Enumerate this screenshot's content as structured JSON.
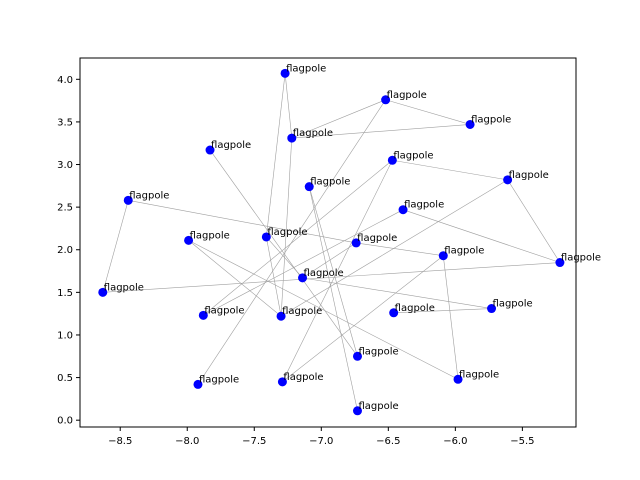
{
  "chart_data": {
    "type": "scatter",
    "title": "",
    "xlabel": "",
    "ylabel": "",
    "xlim": [
      -8.8,
      -5.1
    ],
    "ylim": [
      -0.08,
      4.25
    ],
    "xticks": [
      -8.5,
      -8.0,
      -7.5,
      -7.0,
      -6.5,
      -6.0,
      -5.5
    ],
    "xtick_labels": [
      "−8.5",
      "−8.0",
      "−7.5",
      "−7.0",
      "−6.5",
      "−6.0",
      "−5.5"
    ],
    "yticks": [
      0.0,
      0.5,
      1.0,
      1.5,
      2.0,
      2.5,
      3.0,
      3.5,
      4.0
    ],
    "ytick_labels": [
      "0.0",
      "0.5",
      "1.0",
      "1.5",
      "2.0",
      "2.5",
      "3.0",
      "3.5",
      "4.0"
    ],
    "grid": false,
    "point_color": "#0000ff",
    "edge_color": "#a0a0a0",
    "points": [
      {
        "x": -7.27,
        "y": 4.07,
        "label": "flagpole"
      },
      {
        "x": -6.52,
        "y": 3.76,
        "label": "flagpole"
      },
      {
        "x": -5.89,
        "y": 3.47,
        "label": "flagpole"
      },
      {
        "x": -7.22,
        "y": 3.31,
        "label": "flagpole"
      },
      {
        "x": -7.83,
        "y": 3.17,
        "label": "flagpole"
      },
      {
        "x": -6.47,
        "y": 3.05,
        "label": "flagpole"
      },
      {
        "x": -5.61,
        "y": 2.82,
        "label": "flagpole"
      },
      {
        "x": -7.09,
        "y": 2.74,
        "label": "flagpole"
      },
      {
        "x": -8.44,
        "y": 2.58,
        "label": "flagpole"
      },
      {
        "x": -6.39,
        "y": 2.47,
        "label": "flagpole"
      },
      {
        "x": -7.41,
        "y": 2.15,
        "label": "flagpole"
      },
      {
        "x": -7.99,
        "y": 2.11,
        "label": "flagpole"
      },
      {
        "x": -6.74,
        "y": 2.08,
        "label": "flagpole"
      },
      {
        "x": -6.09,
        "y": 1.93,
        "label": "flagpole"
      },
      {
        "x": -5.22,
        "y": 1.85,
        "label": "flagpole"
      },
      {
        "x": -7.14,
        "y": 1.67,
        "label": "flagpole"
      },
      {
        "x": -8.63,
        "y": 1.5,
        "label": "flagpole"
      },
      {
        "x": -5.73,
        "y": 1.31,
        "label": "flagpole"
      },
      {
        "x": -6.46,
        "y": 1.26,
        "label": "flagpole"
      },
      {
        "x": -7.88,
        "y": 1.23,
        "label": "flagpole"
      },
      {
        "x": -7.3,
        "y": 1.22,
        "label": "flagpole"
      },
      {
        "x": -6.73,
        "y": 0.75,
        "label": "flagpole"
      },
      {
        "x": -5.98,
        "y": 0.48,
        "label": "flagpole"
      },
      {
        "x": -7.29,
        "y": 0.45,
        "label": "flagpole"
      },
      {
        "x": -7.92,
        "y": 0.42,
        "label": "flagpole"
      },
      {
        "x": -6.73,
        "y": 0.11,
        "label": "flagpole"
      }
    ],
    "edges": [
      [
        0,
        10
      ],
      [
        0,
        3
      ],
      [
        1,
        2
      ],
      [
        1,
        3
      ],
      [
        1,
        24
      ],
      [
        3,
        2
      ],
      [
        4,
        21
      ],
      [
        5,
        6
      ],
      [
        5,
        23
      ],
      [
        6,
        14
      ],
      [
        7,
        25
      ],
      [
        8,
        16
      ],
      [
        8,
        12
      ],
      [
        9,
        14
      ],
      [
        9,
        19
      ],
      [
        10,
        20
      ],
      [
        11,
        22
      ],
      [
        12,
        13
      ],
      [
        13,
        22
      ],
      [
        13,
        23
      ],
      [
        14,
        16
      ],
      [
        15,
        17
      ],
      [
        15,
        12
      ],
      [
        15,
        10
      ],
      [
        18,
        17
      ],
      [
        19,
        5
      ],
      [
        20,
        6
      ],
      [
        20,
        11
      ],
      [
        20,
        3
      ],
      [
        21,
        7
      ]
    ]
  }
}
